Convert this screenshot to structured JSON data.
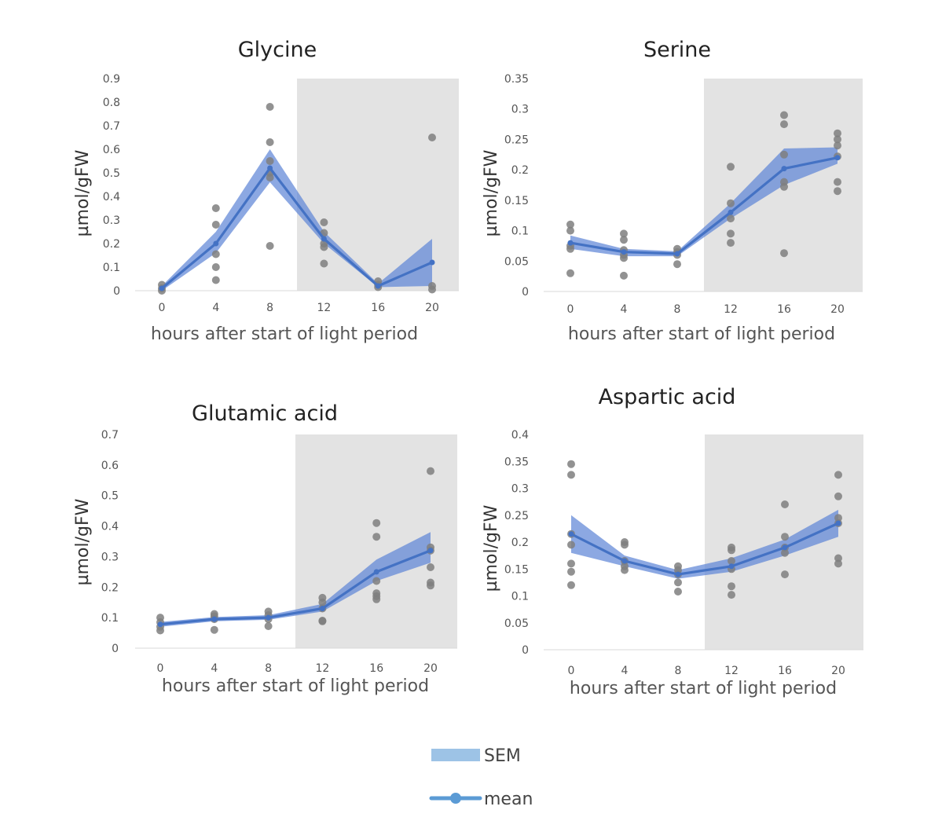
{
  "legend": {
    "sem_label": "SEM",
    "mean_label": "mean"
  },
  "colors": {
    "shade": "#e3e3e3",
    "band": "#5b83d6",
    "mean": "#4472c4",
    "points": "#7f7f7f",
    "axis": "#d9d9d9"
  },
  "chart_data": [
    {
      "type": "line",
      "title": "Glycine",
      "xlabel": "hours after start of light period",
      "ylabel": "µmol/gFW",
      "x": [
        0,
        4,
        8,
        12,
        16,
        20
      ],
      "xticks": [
        "0",
        "4",
        "8",
        "12",
        "16",
        "20"
      ],
      "yticks": [
        "0",
        "0.1",
        "0.2",
        "0.3",
        "0.4",
        "0.5",
        "0.6",
        "0.7",
        "0.8",
        "0.9"
      ],
      "ylim": [
        0,
        0.9
      ],
      "dark_period_start_hour": 10,
      "series": [
        {
          "name": "mean",
          "values": [
            0.01,
            0.2,
            0.52,
            0.22,
            0.02,
            0.12
          ]
        },
        {
          "name": "SEM",
          "lower": [
            0.0,
            0.16,
            0.46,
            0.2,
            0.015,
            0.02
          ],
          "upper": [
            0.02,
            0.25,
            0.6,
            0.25,
            0.03,
            0.22
          ]
        }
      ],
      "points": [
        [
          0,
          0.025
        ],
        [
          0,
          0.01
        ],
        [
          0,
          0.0
        ],
        [
          4,
          0.35
        ],
        [
          4,
          0.28
        ],
        [
          4,
          0.155
        ],
        [
          4,
          0.1
        ],
        [
          4,
          0.045
        ],
        [
          8,
          0.78
        ],
        [
          8,
          0.63
        ],
        [
          8,
          0.55
        ],
        [
          8,
          0.5
        ],
        [
          8,
          0.48
        ],
        [
          8,
          0.19
        ],
        [
          12,
          0.29
        ],
        [
          12,
          0.245
        ],
        [
          12,
          0.2
        ],
        [
          12,
          0.185
        ],
        [
          12,
          0.115
        ],
        [
          16,
          0.04
        ],
        [
          16,
          0.025
        ],
        [
          16,
          0.015
        ],
        [
          20,
          0.65
        ],
        [
          20,
          0.02
        ],
        [
          20,
          0.005
        ]
      ]
    },
    {
      "type": "line",
      "title": "Serine",
      "xlabel": "hours after start of light period",
      "ylabel": "µmol/gFW",
      "x": [
        0,
        4,
        8,
        12,
        16,
        20
      ],
      "xticks": [
        "0",
        "4",
        "8",
        "12",
        "16",
        "20"
      ],
      "yticks": [
        "0",
        "0.05",
        "0.1",
        "0.15",
        "0.2",
        "0.25",
        "0.3",
        "0.35"
      ],
      "ylim": [
        0,
        0.35
      ],
      "dark_period_start_hour": 10,
      "series": [
        {
          "name": "mean",
          "values": [
            0.08,
            0.065,
            0.062,
            0.13,
            0.202,
            0.22
          ]
        },
        {
          "name": "SEM",
          "lower": [
            0.07,
            0.058,
            0.058,
            0.12,
            0.175,
            0.21
          ],
          "upper": [
            0.092,
            0.07,
            0.066,
            0.145,
            0.235,
            0.237
          ]
        }
      ],
      "points": [
        [
          0,
          0.11
        ],
        [
          0,
          0.1
        ],
        [
          0,
          0.075
        ],
        [
          0,
          0.07
        ],
        [
          0,
          0.03
        ],
        [
          4,
          0.095
        ],
        [
          4,
          0.085
        ],
        [
          4,
          0.068
        ],
        [
          4,
          0.06
        ],
        [
          4,
          0.055
        ],
        [
          4,
          0.026
        ],
        [
          8,
          0.07
        ],
        [
          8,
          0.065
        ],
        [
          8,
          0.06
        ],
        [
          8,
          0.045
        ],
        [
          12,
          0.205
        ],
        [
          12,
          0.145
        ],
        [
          12,
          0.12
        ],
        [
          12,
          0.095
        ],
        [
          12,
          0.08
        ],
        [
          16,
          0.29
        ],
        [
          16,
          0.275
        ],
        [
          16,
          0.225
        ],
        [
          16,
          0.18
        ],
        [
          16,
          0.172
        ],
        [
          16,
          0.063
        ],
        [
          20,
          0.26
        ],
        [
          20,
          0.25
        ],
        [
          20,
          0.24
        ],
        [
          20,
          0.222
        ],
        [
          20,
          0.18
        ],
        [
          20,
          0.165
        ]
      ]
    },
    {
      "type": "line",
      "title": "Glutamic acid",
      "xlabel": "hours after start of light period",
      "ylabel": "µmol/gFW",
      "x": [
        0,
        4,
        8,
        12,
        16,
        20
      ],
      "xticks": [
        "0",
        "4",
        "8",
        "12",
        "16",
        "20"
      ],
      "yticks": [
        "0",
        "0.1",
        "0.2",
        "0.3",
        "0.4",
        "0.5",
        "0.6",
        "0.7"
      ],
      "ylim": [
        0,
        0.7
      ],
      "dark_period_start_hour": 10,
      "series": [
        {
          "name": "mean",
          "values": [
            0.078,
            0.095,
            0.1,
            0.13,
            0.25,
            0.32
          ]
        },
        {
          "name": "SEM",
          "lower": [
            0.07,
            0.088,
            0.093,
            0.12,
            0.22,
            0.28
          ],
          "upper": [
            0.086,
            0.102,
            0.108,
            0.145,
            0.29,
            0.38
          ]
        }
      ],
      "points": [
        [
          0,
          0.1
        ],
        [
          0,
          0.085
        ],
        [
          0,
          0.07
        ],
        [
          0,
          0.058
        ],
        [
          4,
          0.112
        ],
        [
          4,
          0.105
        ],
        [
          4,
          0.095
        ],
        [
          4,
          0.06
        ],
        [
          8,
          0.12
        ],
        [
          8,
          0.108
        ],
        [
          8,
          0.095
        ],
        [
          8,
          0.072
        ],
        [
          12,
          0.165
        ],
        [
          12,
          0.15
        ],
        [
          12,
          0.13
        ],
        [
          12,
          0.09
        ],
        [
          12,
          0.088
        ],
        [
          16,
          0.41
        ],
        [
          16,
          0.365
        ],
        [
          16,
          0.22
        ],
        [
          16,
          0.18
        ],
        [
          16,
          0.17
        ],
        [
          16,
          0.16
        ],
        [
          20,
          0.58
        ],
        [
          20,
          0.33
        ],
        [
          20,
          0.32
        ],
        [
          20,
          0.265
        ],
        [
          20,
          0.215
        ],
        [
          20,
          0.205
        ]
      ]
    },
    {
      "type": "line",
      "title": "Aspartic acid",
      "xlabel": "hours after start of light period",
      "ylabel": "µmol/gFW",
      "x": [
        0,
        4,
        8,
        12,
        16,
        20
      ],
      "xticks": [
        "0",
        "4",
        "8",
        "12",
        "16",
        "20"
      ],
      "yticks": [
        "0",
        "0.05",
        "0.1",
        "0.15",
        "0.2",
        "0.25",
        "0.3",
        "0.35",
        "0.4"
      ],
      "ylim": [
        0,
        0.4
      ],
      "dark_period_start_hour": 10,
      "series": [
        {
          "name": "mean",
          "values": [
            0.215,
            0.165,
            0.14,
            0.155,
            0.19,
            0.235
          ]
        },
        {
          "name": "SEM",
          "lower": [
            0.18,
            0.155,
            0.132,
            0.145,
            0.175,
            0.21
          ],
          "upper": [
            0.25,
            0.175,
            0.148,
            0.17,
            0.205,
            0.26
          ]
        }
      ],
      "points": [
        [
          0,
          0.345
        ],
        [
          0,
          0.325
        ],
        [
          0,
          0.215
        ],
        [
          0,
          0.195
        ],
        [
          0,
          0.16
        ],
        [
          0,
          0.145
        ],
        [
          0,
          0.12
        ],
        [
          4,
          0.2
        ],
        [
          4,
          0.195
        ],
        [
          4,
          0.165
        ],
        [
          4,
          0.155
        ],
        [
          4,
          0.148
        ],
        [
          8,
          0.155
        ],
        [
          8,
          0.148
        ],
        [
          8,
          0.14
        ],
        [
          8,
          0.125
        ],
        [
          8,
          0.108
        ],
        [
          12,
          0.19
        ],
        [
          12,
          0.185
        ],
        [
          12,
          0.165
        ],
        [
          12,
          0.15
        ],
        [
          12,
          0.118
        ],
        [
          12,
          0.102
        ],
        [
          16,
          0.27
        ],
        [
          16,
          0.21
        ],
        [
          16,
          0.19
        ],
        [
          16,
          0.18
        ],
        [
          16,
          0.14
        ],
        [
          20,
          0.325
        ],
        [
          20,
          0.285
        ],
        [
          20,
          0.245
        ],
        [
          20,
          0.235
        ],
        [
          20,
          0.17
        ],
        [
          20,
          0.16
        ]
      ]
    }
  ]
}
